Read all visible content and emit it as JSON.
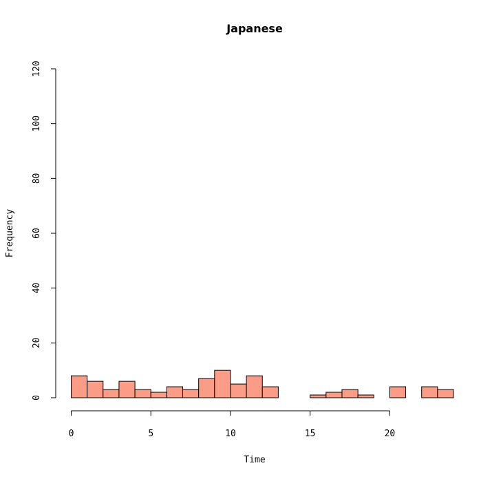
{
  "chart_data": {
    "type": "bar",
    "title": "Japanese",
    "xlabel": "Time",
    "ylabel": "Frequency",
    "bin_width": 1,
    "bin_starts": [
      0,
      1,
      2,
      3,
      4,
      5,
      6,
      7,
      8,
      9,
      10,
      11,
      12,
      13,
      14,
      15,
      16,
      17,
      18,
      19,
      20,
      21,
      22,
      23
    ],
    "values": [
      8,
      6,
      3,
      6,
      3,
      2,
      4,
      3,
      7,
      10,
      5,
      8,
      4,
      0,
      0,
      1,
      2,
      3,
      1,
      0,
      4,
      0,
      4,
      3
    ],
    "xlim": [
      0,
      24
    ],
    "ylim": [
      0,
      120
    ],
    "x_ticks": [
      "0",
      "5",
      "10",
      "15",
      "20"
    ],
    "y_ticks": [
      "0",
      "20",
      "40",
      "60",
      "80",
      "100",
      "120"
    ],
    "bar_color": "#FA9C86",
    "grid": false
  }
}
